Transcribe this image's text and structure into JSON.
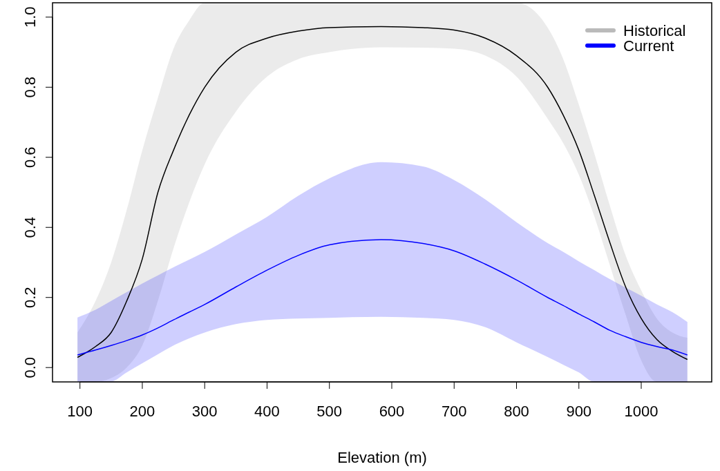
{
  "chart_data": {
    "type": "line",
    "xlabel": "Elevation (m)",
    "x": [
      96,
      125,
      150,
      175,
      200,
      225,
      250,
      275,
      300,
      350,
      400,
      450,
      500,
      583,
      650,
      700,
      750,
      800,
      850,
      875,
      900,
      925,
      950,
      975,
      1000,
      1025,
      1050,
      1074
    ],
    "series": [
      {
        "name": "Historical",
        "color": "#000000",
        "values": [
          0.029,
          0.06,
          0.1,
          0.19,
          0.31,
          0.5,
          0.62,
          0.72,
          0.8,
          0.9,
          0.94,
          0.96,
          0.97,
          0.973,
          0.97,
          0.963,
          0.94,
          0.89,
          0.8,
          0.72,
          0.62,
          0.49,
          0.355,
          0.23,
          0.14,
          0.08,
          0.046,
          0.023
        ],
        "upper": [
          0.1,
          0.19,
          0.3,
          0.45,
          0.62,
          0.77,
          0.91,
          0.99,
          1.041,
          1.041,
          1.041,
          1.041,
          1.041,
          1.041,
          1.041,
          1.041,
          1.041,
          1.041,
          0.97,
          0.88,
          0.75,
          0.61,
          0.46,
          0.32,
          0.22,
          0.14,
          0.1,
          0.085
        ],
        "lower": [
          -0.041,
          -0.041,
          -0.03,
          0.0,
          0.063,
          0.19,
          0.34,
          0.47,
          0.58,
          0.73,
          0.83,
          0.88,
          0.9,
          0.914,
          0.913,
          0.91,
          0.89,
          0.83,
          0.71,
          0.64,
          0.55,
          0.43,
          0.29,
          0.15,
          0.02,
          -0.041,
          -0.041,
          -0.041
        ]
      },
      {
        "name": "Current",
        "color": "#0000ff",
        "values": [
          0.036,
          0.05,
          0.063,
          0.077,
          0.093,
          0.113,
          0.136,
          0.158,
          0.18,
          0.23,
          0.278,
          0.32,
          0.35,
          0.365,
          0.354,
          0.333,
          0.295,
          0.25,
          0.2,
          0.177,
          0.153,
          0.13,
          0.106,
          0.088,
          0.072,
          0.06,
          0.05,
          0.036
        ],
        "upper": [
          0.143,
          0.165,
          0.19,
          0.215,
          0.24,
          0.263,
          0.286,
          0.308,
          0.33,
          0.38,
          0.43,
          0.49,
          0.54,
          0.586,
          0.574,
          0.535,
          0.48,
          0.415,
          0.355,
          0.33,
          0.303,
          0.278,
          0.252,
          0.228,
          0.205,
          0.18,
          0.158,
          0.13
        ],
        "lower": [
          -0.041,
          -0.041,
          -0.04,
          -0.014,
          0.012,
          0.038,
          0.063,
          0.083,
          0.1,
          0.124,
          0.136,
          0.14,
          0.142,
          0.145,
          0.142,
          0.136,
          0.115,
          0.072,
          0.03,
          0.008,
          -0.014,
          -0.041,
          -0.041,
          -0.041,
          -0.041,
          -0.041,
          -0.041,
          -0.041
        ]
      }
    ],
    "xlim": [
      56,
      1113
    ],
    "ylim": [
      -0.041,
      1.041
    ],
    "xticks": [
      100,
      200,
      300,
      400,
      500,
      600,
      700,
      800,
      900,
      1000
    ],
    "yticks": [
      {
        "value": 0,
        "label": "0.0"
      },
      {
        "value": 0.2,
        "label": "0.2"
      },
      {
        "value": 0.4,
        "label": "0.4"
      },
      {
        "value": 0.6,
        "label": "0.6"
      },
      {
        "value": 0.8,
        "label": "0.8"
      },
      {
        "value": 1,
        "label": "1.0"
      }
    ],
    "legend": "top right",
    "grid": false,
    "line_style": "solid",
    "marker": "none"
  }
}
